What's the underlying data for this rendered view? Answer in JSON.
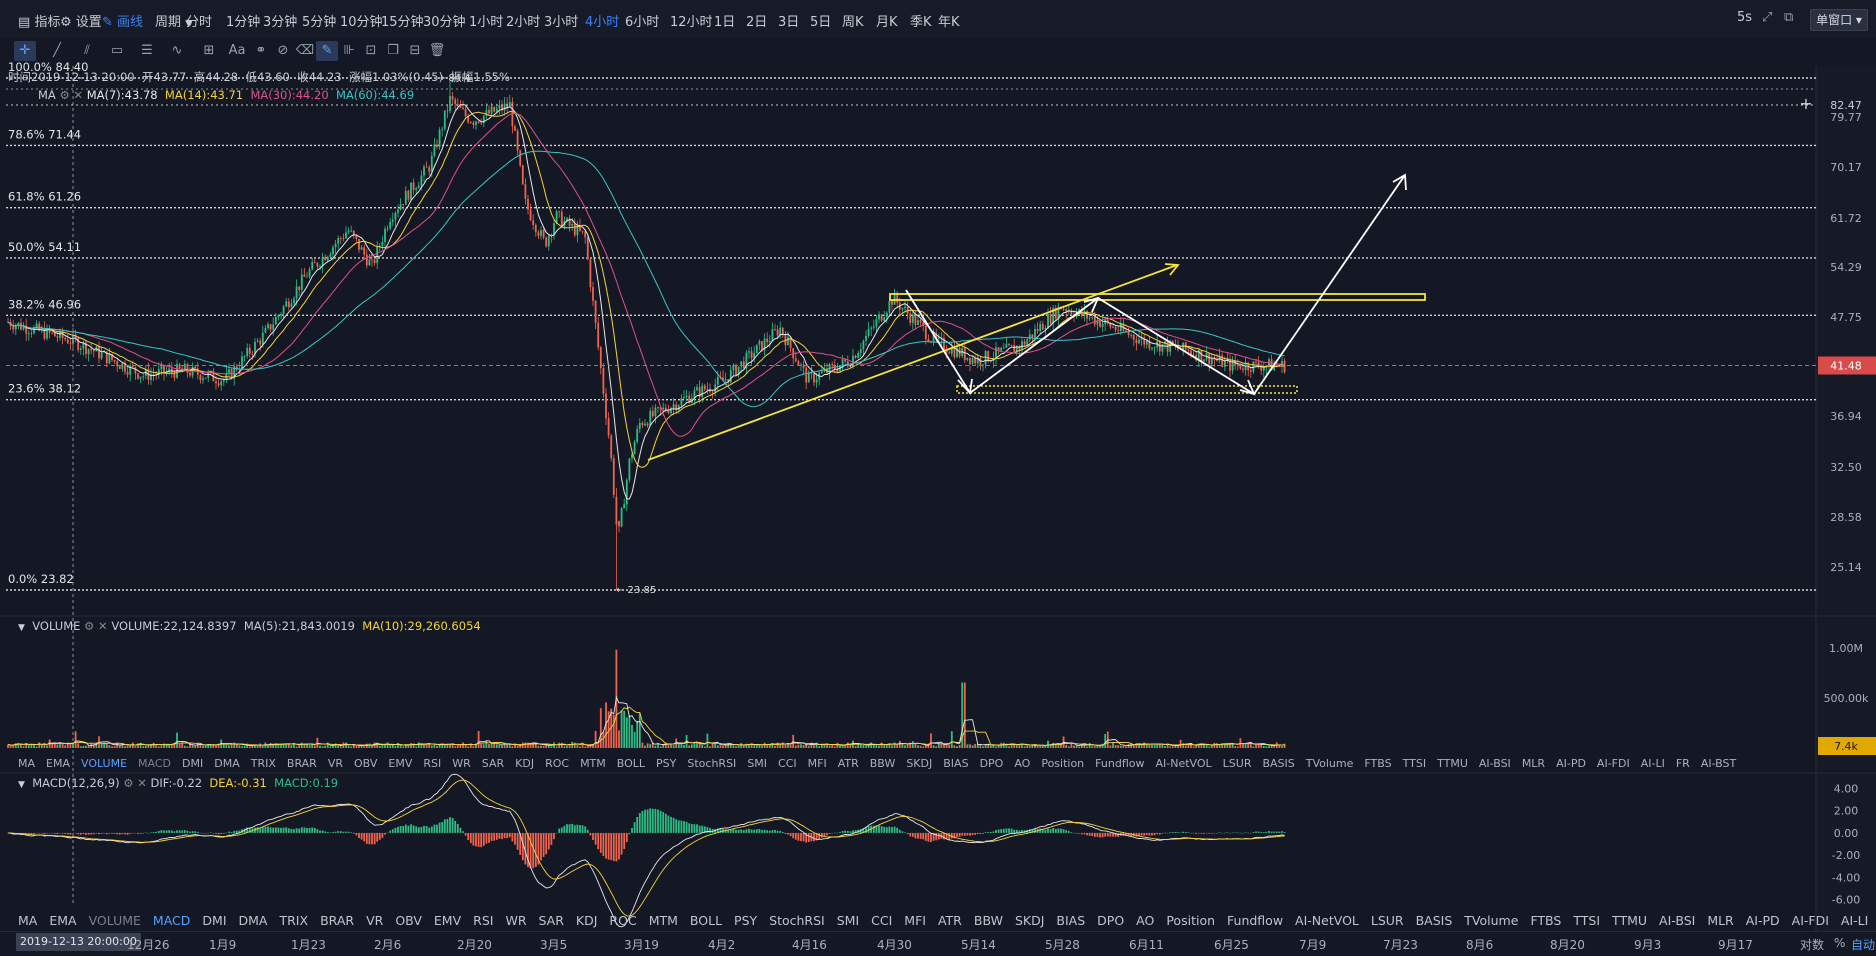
{
  "topbar": {
    "indicators_label": "指标",
    "settings_label": "设置",
    "draw_label": "画线",
    "period_label": "周期",
    "periods": [
      "分时",
      "1分钟",
      "3分钟",
      "5分钟",
      "10分钟",
      "15分钟",
      "30分钟",
      "1小时",
      "2小时",
      "3小时",
      "4小时",
      "6小时",
      "12小时",
      "1日",
      "2日",
      "3日",
      "5日",
      "周K",
      "月K",
      "季K",
      "年K"
    ],
    "active_period": "4小时",
    "interval": "5s",
    "layout_label": "单窗口"
  },
  "colors": {
    "up": "#2ebd85",
    "down": "#f0634f",
    "ma7": "#e8e8e8",
    "ma14": "#f5d23a",
    "ma30": "#e0508a",
    "ma60": "#39c6c6",
    "drawing_yellow": "#f5e53a",
    "drawing_white": "#ffffff",
    "current_price": "#e05a5a"
  },
  "legend": {
    "ohlc": {
      "time": "时间2019-12-13 20:00",
      "open": "开43.77",
      "high": "高44.28",
      "low": "低43.60",
      "close": "收44.23",
      "change": "涨幅1.03%(0.45)",
      "amp": "振幅1.55%"
    },
    "ma": {
      "name": "MA",
      "ma7": "MA(7):43.78",
      "ma14": "MA(14):43.71",
      "ma30": "MA(30):44.20",
      "ma60": "MA(60):44.69"
    },
    "volume": {
      "name": "VOLUME",
      "vol": "VOLUME:22,124.8397",
      "ma5": "MA(5):21,843.0019",
      "ma10": "MA(10):29,260.6054"
    },
    "macd": {
      "name": "MACD(12,26,9)",
      "dif": "DIF:-0.22",
      "dea": "DEA:-0.31",
      "macd": "MACD:0.19"
    }
  },
  "fib_labels": [
    "100.0% 84.40",
    "78.6% 71.44",
    "61.8% 61.26",
    "50.0% 54.11",
    "38.2% 46.96",
    "23.6% 38.12",
    "0.0% 23.82"
  ],
  "extreme_labels": {
    "high": "84.4",
    "low": "23.85"
  },
  "price_axis": [
    "82.47",
    "79.77",
    "70.17",
    "61.72",
    "54.29",
    "47.75",
    "41.48",
    "36.94",
    "32.50",
    "28.58",
    "25.14"
  ],
  "current_price": "41.48",
  "volume_axis": [
    "1.00M",
    "500.00k",
    "7.4k"
  ],
  "macd_axis": [
    "4.00",
    "2.00",
    "0.00",
    "-2.00",
    "-4.00",
    "-6.00"
  ],
  "indicator_tabs": [
    "MA",
    "EMA",
    "VOLUME",
    "MACD",
    "DMI",
    "DMA",
    "TRIX",
    "BRAR",
    "VR",
    "OBV",
    "EMV",
    "RSI",
    "WR",
    "SAR",
    "KDJ",
    "ROC",
    "MTM",
    "BOLL",
    "PSY",
    "StochRSI",
    "SMI",
    "CCI",
    "MFI",
    "ATR",
    "BBW",
    "SKDJ",
    "BIAS",
    "DPO",
    "AO",
    "Position",
    "Fundflow",
    "AI-NetVOL",
    "LSUR",
    "BASIS",
    "TVolume",
    "FTBS",
    "TTSI",
    "TTMU",
    "AI-BSI",
    "MLR",
    "AI-PD",
    "AI-FDI",
    "AI-LI",
    "FR",
    "AI-BST"
  ],
  "x_axis": {
    "cursor_time": "2019-12-13 20:00:00",
    "labels": [
      "12月26",
      "1月9",
      "1月23",
      "2月6",
      "2月20",
      "3月5",
      "3月19",
      "4月2",
      "4月16",
      "4月30",
      "5月14",
      "5月28",
      "6月11",
      "6月25",
      "7月9",
      "7月23",
      "8月6",
      "8月20",
      "9月3",
      "9月17"
    ],
    "scale_labels": [
      "对数",
      "%",
      "自动"
    ]
  },
  "chart_data": {
    "type": "candlestick",
    "price_range": [
      22.5,
      85.5
    ],
    "scale": "log",
    "fib_retracement": [
      {
        "level": "100.0%",
        "price": 84.4
      },
      {
        "level": "78.6%",
        "price": 71.44
      },
      {
        "level": "61.8%",
        "price": 61.26
      },
      {
        "level": "50.0%",
        "price": 54.11
      },
      {
        "level": "38.2%",
        "price": 46.96
      },
      {
        "level": "23.6%",
        "price": 38.12
      },
      {
        "level": "0.0%",
        "price": 23.82
      }
    ],
    "price_path": [
      [
        "12月13",
        46.2
      ],
      [
        "12月20",
        44.0
      ],
      [
        "12月26",
        40.5
      ],
      [
        "1月2",
        41.0
      ],
      [
        "1月9",
        40.0
      ],
      [
        "1月16",
        45.0
      ],
      [
        "1月23",
        52.0
      ],
      [
        "1月30",
        58.0
      ],
      [
        "2月3",
        53.0
      ],
      [
        "2月6",
        60.0
      ],
      [
        "2月10",
        68.0
      ],
      [
        "2月14",
        77.0
      ],
      [
        "2月18",
        84.0
      ],
      [
        "2月20",
        76.0
      ],
      [
        "2月24",
        79.0
      ],
      [
        "2月28",
        62.0
      ],
      [
        "3月2",
        56.0
      ],
      [
        "3月5",
        60.0
      ],
      [
        "3月9",
        57.0
      ],
      [
        "3月12",
        34.0
      ],
      [
        "3月13",
        27.0
      ],
      [
        "3月17",
        33.0
      ],
      [
        "3月19",
        36.0
      ],
      [
        "3月26",
        38.5
      ],
      [
        "4月2",
        40.0
      ],
      [
        "4月9",
        45.5
      ],
      [
        "4月16",
        40.0
      ],
      [
        "4月23",
        42.0
      ],
      [
        "4月30",
        49.0
      ],
      [
        "5月7",
        44.0
      ],
      [
        "5月14",
        42.0
      ],
      [
        "5月21",
        43.5
      ],
      [
        "5月28",
        48.0
      ],
      [
        "6月4",
        46.0
      ],
      [
        "6月11",
        44.0
      ],
      [
        "6月18",
        43.0
      ],
      [
        "6月25",
        41.5
      ],
      [
        "6月30",
        41.48
      ]
    ],
    "volume_range": [
      0,
      1100000
    ],
    "macd_range": [
      -6.5,
      4.5
    ]
  }
}
